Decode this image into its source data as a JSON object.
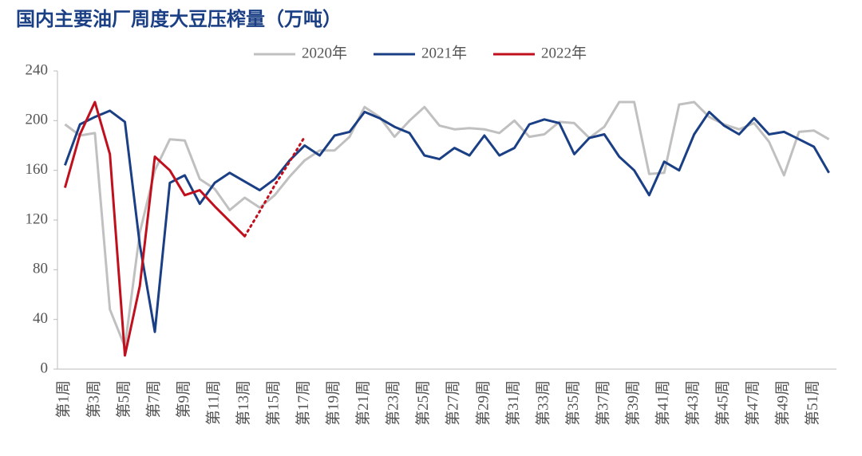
{
  "chart_data": {
    "type": "line",
    "title": "国内主要油厂周度大豆压榨量（万吨）",
    "categories": [
      "第1周",
      null,
      "第3周",
      null,
      "第5周",
      null,
      "第7周",
      null,
      "第9周",
      null,
      "第11周",
      null,
      "第13周",
      null,
      "第15周",
      null,
      "第17周",
      null,
      "第19周",
      null,
      "第21周",
      null,
      "第23周",
      null,
      "第25周",
      null,
      "第27周",
      null,
      "第29周",
      null,
      "第31周",
      null,
      "第33周",
      null,
      "第35周",
      null,
      "第37周",
      null,
      "第39周",
      null,
      "第41周",
      null,
      "第43周",
      null,
      "第45周",
      null,
      "第47周",
      null,
      "第49周",
      null,
      "第51周",
      null
    ],
    "series": [
      {
        "name": "2020年",
        "color": "#c0c0c0",
        "values": [
          197,
          188,
          190,
          48,
          18,
          110,
          160,
          185,
          184,
          153,
          145,
          128,
          138,
          130,
          140,
          155,
          168,
          176,
          176,
          187,
          211,
          203,
          187,
          200,
          211,
          196,
          193,
          194,
          193,
          190,
          200,
          187,
          189,
          199,
          198,
          186,
          195,
          215,
          215,
          157,
          158,
          213,
          215,
          203,
          197,
          193,
          198,
          183,
          156,
          191,
          192,
          185
        ]
      },
      {
        "name": "2021年",
        "color": "#1a3f85",
        "values": [
          164,
          197,
          203,
          208,
          199,
          100,
          30,
          150,
          156,
          133,
          150,
          158,
          151,
          144,
          153,
          168,
          180,
          172,
          188,
          191,
          207,
          202,
          195,
          190,
          172,
          169,
          178,
          172,
          188,
          172,
          178,
          197,
          201,
          198,
          173,
          186,
          189,
          171,
          160,
          140,
          167,
          160,
          189,
          207,
          196,
          189,
          202,
          189,
          191,
          185,
          179,
          158
        ]
      },
      {
        "name": "2022年",
        "color": "#c0101e",
        "dotted_from_index": 12,
        "values": [
          146,
          189,
          215,
          173,
          11,
          67,
          171,
          160,
          140,
          144,
          131,
          119,
          107,
          127,
          148,
          167,
          187,
          null,
          null,
          null,
          null,
          null,
          null,
          null,
          null,
          null,
          null,
          null,
          null,
          null,
          null,
          null,
          null,
          null,
          null,
          null,
          null,
          null,
          null,
          null,
          null,
          null,
          null,
          null,
          null,
          null,
          null,
          null,
          null,
          null,
          null,
          null
        ]
      }
    ],
    "ylim": [
      0,
      240
    ],
    "yticks": [
      0,
      40,
      80,
      120,
      160,
      200,
      240
    ],
    "legend": "top"
  }
}
